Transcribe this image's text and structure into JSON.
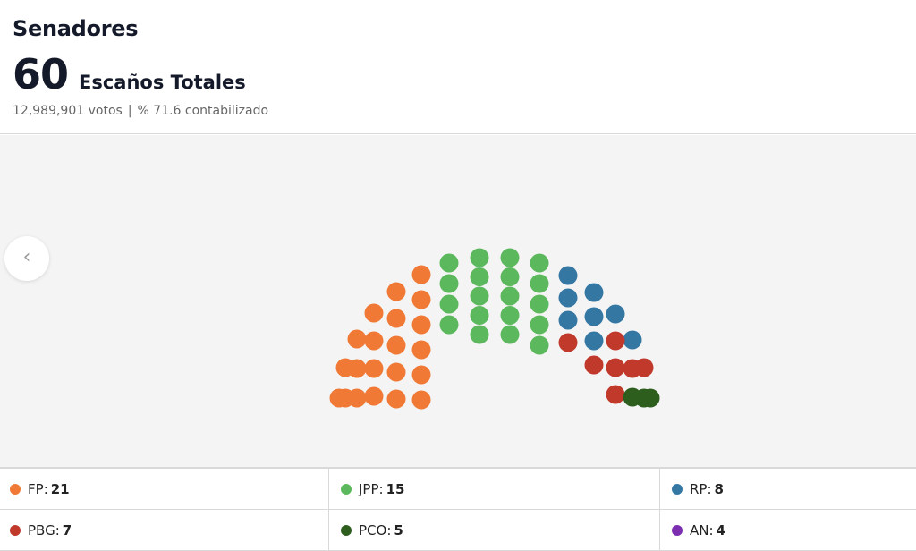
{
  "header": {
    "title": "Senadores",
    "total_seats": "60",
    "total_label": "Escaños Totales",
    "votes": "12,989,901 votos",
    "separator": "|",
    "counted": "% 71.6 contabilizado"
  },
  "nav": {
    "prev_icon": "chevron-left-icon",
    "prev_glyph": "‹"
  },
  "parties": [
    {
      "name": "FP",
      "seats": 21,
      "seats_label": "21",
      "color": "#f07a35"
    },
    {
      "name": "JPP",
      "seats": 15,
      "seats_label": "15",
      "color": "#5cb85c"
    },
    {
      "name": "RP",
      "seats": 8,
      "seats_label": "8",
      "color": "#3577a3"
    },
    {
      "name": "PBG",
      "seats": 7,
      "seats_label": "7",
      "color": "#c0392b"
    },
    {
      "name": "PCO",
      "seats": 5,
      "seats_label": "5",
      "color": "#2e5e1e"
    },
    {
      "name": "AN",
      "seats": 4,
      "seats_label": "4",
      "color": "#7b2fb0"
    }
  ]
}
